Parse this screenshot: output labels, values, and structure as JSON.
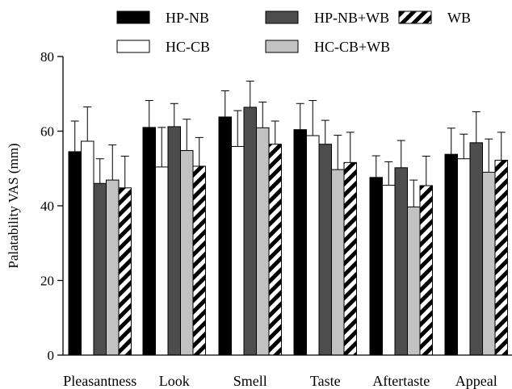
{
  "chart_data": {
    "type": "bar",
    "title": "",
    "xlabel": "",
    "ylabel": "Palatability VAS (mm)",
    "ylim": [
      0,
      80
    ],
    "yticks": [
      0,
      20,
      40,
      60,
      80
    ],
    "grid": false,
    "legend_position": "top",
    "error_bars": "upper",
    "categories": [
      "Pleasantness",
      "Look",
      "Smell",
      "Taste",
      "Aftertaste",
      "Appeal"
    ],
    "series": [
      {
        "name": "HP-NB",
        "fill": "#000000",
        "pattern": "solid",
        "values": [
          54.5,
          61.0,
          63.8,
          60.4,
          47.6,
          53.8
        ],
        "errors": [
          8.2,
          7.2,
          7.0,
          7.0,
          5.8,
          7.0
        ]
      },
      {
        "name": "HC-CB",
        "fill": "#ffffff",
        "pattern": "solid",
        "values": [
          57.3,
          50.4,
          55.9,
          58.8,
          45.5,
          52.6
        ],
        "errors": [
          9.2,
          10.6,
          9.6,
          9.4,
          6.3,
          6.6
        ]
      },
      {
        "name": "HP-NB+WB",
        "fill": "#4d4d4d",
        "pattern": "solid",
        "values": [
          46.0,
          61.2,
          66.4,
          56.5,
          50.2,
          56.9
        ],
        "errors": [
          6.6,
          6.2,
          7.0,
          6.4,
          7.3,
          8.3
        ]
      },
      {
        "name": "HC-CB+WB",
        "fill": "#c2c2c2",
        "pattern": "solid",
        "values": [
          46.9,
          54.8,
          60.9,
          49.7,
          39.7,
          49.0
        ],
        "errors": [
          9.4,
          8.4,
          6.9,
          9.2,
          7.2,
          8.9
        ]
      },
      {
        "name": "WB",
        "fill": "#ffffff",
        "pattern": "stripes",
        "values": [
          44.8,
          50.6,
          56.5,
          51.6,
          45.4,
          52.2
        ],
        "errors": [
          8.5,
          7.7,
          6.2,
          8.1,
          7.9,
          7.5
        ]
      }
    ]
  }
}
